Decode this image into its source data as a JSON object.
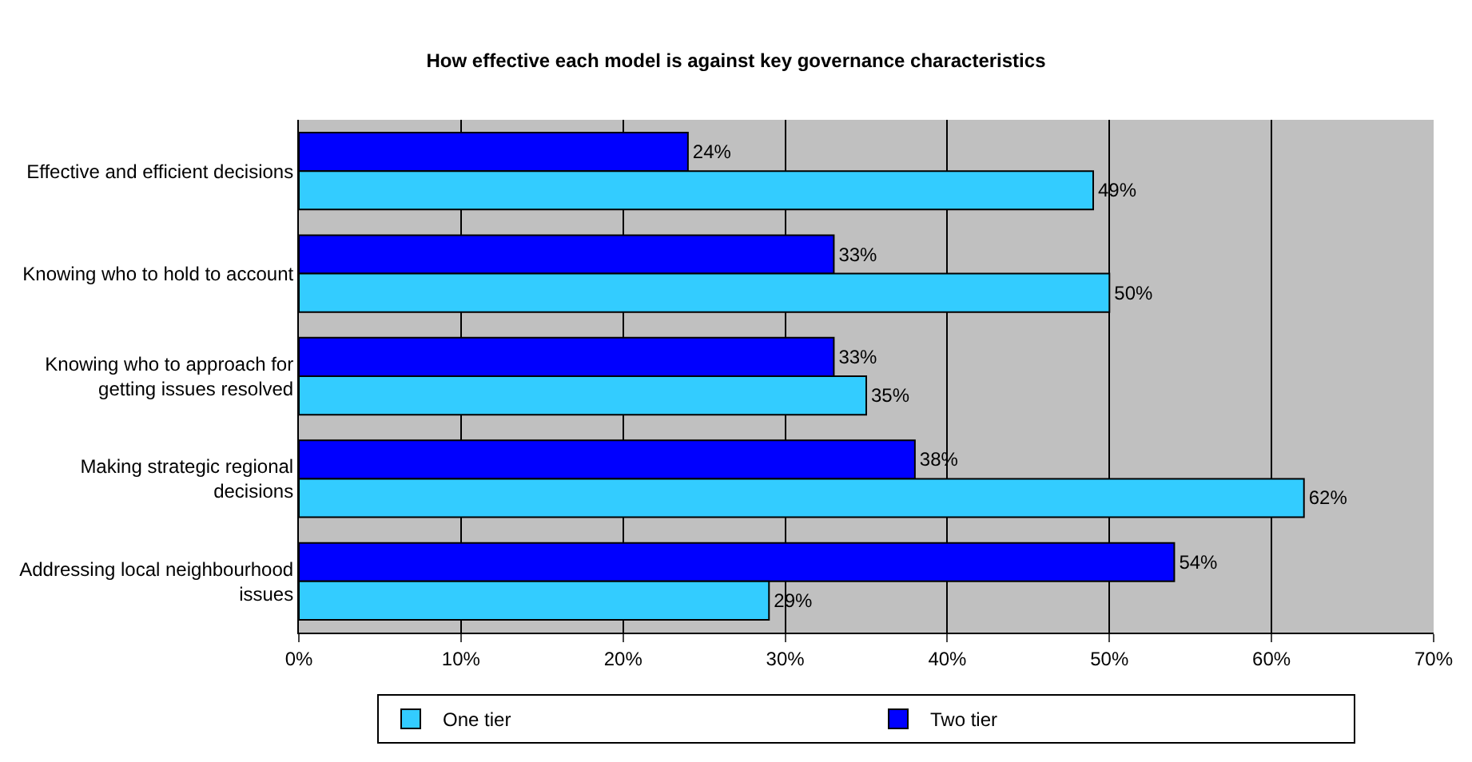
{
  "chart_data": {
    "type": "bar",
    "orientation": "horizontal",
    "title": "How effective each model is against key governance characteristics",
    "categories": [
      "Effective and efficient decisions",
      "Knowing who to hold to account",
      "Knowing who to approach for\ngetting issues resolved",
      "Making strategic regional\ndecisions",
      "Addressing local neighbourhood\nissues"
    ],
    "series": [
      {
        "name": "One tier",
        "color": "#33ccff",
        "values": [
          49,
          50,
          35,
          62,
          29
        ],
        "value_labels": [
          "49%",
          "50%",
          "35%",
          "62%",
          "29%"
        ]
      },
      {
        "name": "Two tier",
        "color": "#0000ff",
        "values": [
          24,
          33,
          33,
          38,
          54
        ],
        "value_labels": [
          "24%",
          "33%",
          "33%",
          "38%",
          "54%"
        ]
      }
    ],
    "xlim": [
      0,
      70
    ],
    "xticks": [
      {
        "value": 0,
        "label": "0%"
      },
      {
        "value": 10,
        "label": "10%"
      },
      {
        "value": 20,
        "label": "20%"
      },
      {
        "value": 30,
        "label": "30%"
      },
      {
        "value": 40,
        "label": "40%"
      },
      {
        "value": 50,
        "label": "50%"
      },
      {
        "value": 60,
        "label": "60%"
      },
      {
        "value": 70,
        "label": "70%"
      }
    ],
    "grid": "x",
    "legend": "bottom"
  }
}
